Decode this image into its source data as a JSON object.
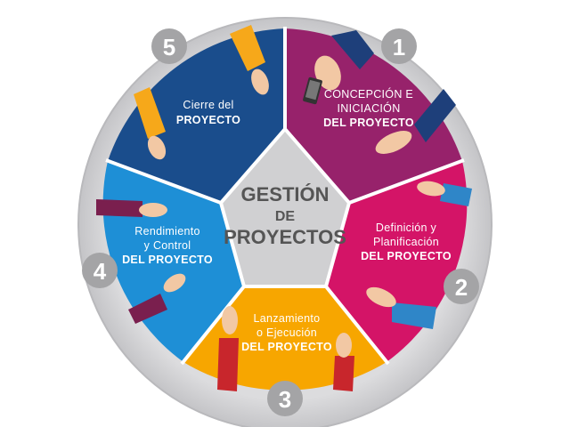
{
  "center": {
    "line1": "GESTIÓN",
    "line2": "DE",
    "line3": "PROYECTOS"
  },
  "phases": [
    {
      "number": "1",
      "lines": [
        "CONCEPCIÓN E",
        "INICIACIÓN",
        "DEL PROYECTO"
      ],
      "color": "#97226b"
    },
    {
      "number": "2",
      "lines": [
        "Definición y",
        "Planificación",
        "DEL PROYECTO"
      ],
      "color": "#d41467"
    },
    {
      "number": "3",
      "lines": [
        "Lanzamiento",
        "o Ejecución",
        "DEL PROYECTO"
      ],
      "color": "#f7a600"
    },
    {
      "number": "4",
      "lines": [
        "Rendimiento",
        "y Control",
        "DEL PROYECTO"
      ],
      "color": "#1e8fd6"
    },
    {
      "number": "5",
      "lines": [
        "Cierre del",
        "PROYECTO"
      ],
      "color": "#1a4d8c"
    }
  ],
  "colors": {
    "ring": "#d5d5d7",
    "ring_edge": "#bdbdc0",
    "center_fill": "#d0d0d2",
    "number_badge": "#a4a4a6",
    "skin": "#f2c8a4",
    "sleeve_1": "#1e3f7a",
    "sleeve_2": "#2f86c8",
    "sleeve_3": "#c8262c",
    "sleeve_4": "#7a1f4e",
    "sleeve_5": "#f6a81a",
    "phone": "#333333"
  },
  "icons": [
    "hand-icon",
    "phone-icon"
  ]
}
